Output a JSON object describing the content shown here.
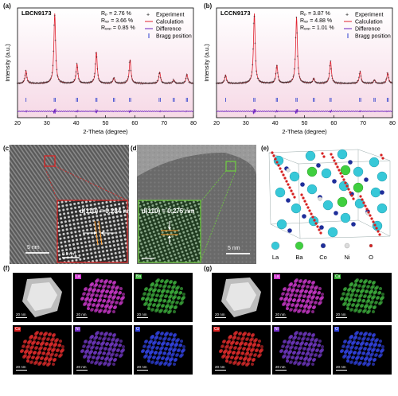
{
  "panels": {
    "a": {
      "letter": "(a)",
      "sample": "LBCN9173",
      "rp": "Rₚ = 2.76 %",
      "rwp": "Rᵥₚ = 3.66 %",
      "rexp": "Rₑₓₚ = 0.85 %"
    },
    "b": {
      "letter": "(b)",
      "sample": "LCCN9173",
      "rp": "Rₚ = 3.87 %",
      "rwp": "Rᵥₚ = 4.88 %",
      "rexp": "Rₑₓₚ = 1.01 %"
    },
    "c": {
      "letter": "(c)",
      "dlabel": "d(110) = 0.284 nm",
      "scale_main": "5 nm",
      "scale_inset": "0.5 nm"
    },
    "d": {
      "letter": "(d)",
      "dlabel": "d(110) = 0.275 nm",
      "scale_main": "5 nm"
    },
    "e": {
      "letter": "(e)",
      "legend": [
        "La",
        "Ba",
        "Co",
        "Ni",
        "O"
      ]
    },
    "f": {
      "letter": "(f)",
      "tiles": [
        "",
        "La",
        "Ba",
        "Co",
        "Ni",
        "O"
      ],
      "scale": "20 nm"
    },
    "g": {
      "letter": "(g)",
      "tiles": [
        "",
        "La",
        "Ca",
        "Co",
        "Ni",
        "O"
      ],
      "scale": "20 nm"
    }
  },
  "legend_entries": [
    "Experiment",
    "Calculation",
    "Difference",
    "Bragg position"
  ],
  "axis": {
    "xlabel": "2-Theta (degree)",
    "ylabel": "Intensity (a.u.)",
    "xticks": [
      "20",
      "30",
      "40",
      "50",
      "60",
      "70",
      "80"
    ]
  },
  "colors": {
    "experiment": "#111111",
    "calculation": "#e0212f",
    "difference": "#6a1fbf",
    "bragg": "#2d3fcf",
    "bg_gradient_top": "#ffffff",
    "bg_gradient_bottom": "#f6d9e6",
    "La": "#cc33cc",
    "Ba": "#44dd44",
    "Ca": "#44dd44",
    "Co": "#dd2222",
    "Ni": "#7733cc",
    "O": "#3344dd"
  },
  "chart_data": [
    {
      "type": "line",
      "title": "LBCN9173",
      "xlabel": "2-Theta (degree)",
      "ylabel": "Intensity (a.u.)",
      "xlim": [
        20,
        80
      ],
      "series": [
        {
          "name": "Experiment",
          "peaks": [
            [
              22.9,
              0.18
            ],
            [
              32.7,
              1.0
            ],
            [
              40.3,
              0.28
            ],
            [
              46.9,
              0.45
            ],
            [
              52.9,
              0.08
            ],
            [
              58.4,
              0.34
            ],
            [
              68.5,
              0.16
            ],
            [
              73.3,
              0.05
            ],
            [
              77.8,
              0.13
            ]
          ]
        },
        {
          "name": "Calculation",
          "peaks": [
            [
              22.9,
              0.18
            ],
            [
              32.7,
              1.0
            ],
            [
              40.3,
              0.28
            ],
            [
              46.9,
              0.45
            ],
            [
              52.9,
              0.08
            ],
            [
              58.4,
              0.34
            ],
            [
              68.5,
              0.16
            ],
            [
              73.3,
              0.05
            ],
            [
              77.8,
              0.13
            ]
          ]
        },
        {
          "name": "Difference"
        },
        {
          "name": "Bragg position",
          "x": [
            22.9,
            32.5,
            32.9,
            40.1,
            40.5,
            46.7,
            47.1,
            52.7,
            53.1,
            58.2,
            58.6,
            68.3,
            68.7,
            73.1,
            73.5,
            77.6,
            78.0
          ]
        }
      ]
    },
    {
      "type": "line",
      "title": "LCCN9173",
      "xlabel": "2-Theta (degree)",
      "ylabel": "Intensity (a.u.)",
      "xlim": [
        20,
        80
      ],
      "series": [
        {
          "name": "Experiment",
          "peaks": [
            [
              23.1,
              0.12
            ],
            [
              32.9,
              1.0
            ],
            [
              40.6,
              0.26
            ],
            [
              47.3,
              0.95
            ],
            [
              53.2,
              0.07
            ],
            [
              58.9,
              0.32
            ],
            [
              69.0,
              0.17
            ],
            [
              73.9,
              0.05
            ],
            [
              78.4,
              0.15
            ]
          ]
        },
        {
          "name": "Calculation",
          "peaks": [
            [
              23.1,
              0.12
            ],
            [
              32.9,
              1.0
            ],
            [
              40.6,
              0.26
            ],
            [
              47.3,
              0.95
            ],
            [
              53.2,
              0.07
            ],
            [
              58.9,
              0.32
            ],
            [
              69.0,
              0.17
            ],
            [
              73.9,
              0.05
            ],
            [
              78.4,
              0.15
            ]
          ]
        },
        {
          "name": "Difference"
        },
        {
          "name": "Bragg position",
          "x": [
            23.1,
            32.7,
            33.1,
            40.4,
            40.8,
            47.1,
            47.5,
            53.0,
            53.4,
            58.7,
            59.1,
            68.8,
            69.2,
            73.7,
            74.1,
            78.2,
            78.6
          ]
        }
      ]
    }
  ]
}
